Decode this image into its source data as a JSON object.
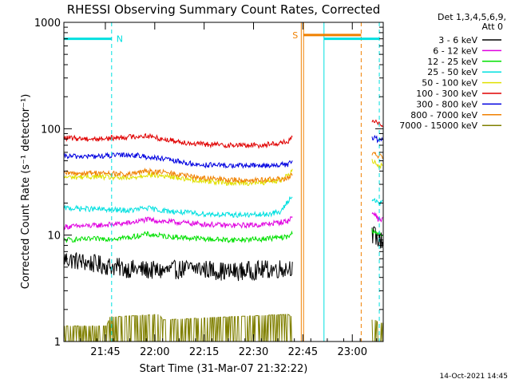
{
  "chart_data": {
    "type": "line",
    "title": "RHESSI Observing Summary Count Rates, Corrected",
    "xlabel": "Start Time (31-Mar-07 21:32:22)",
    "ylabel": "Corrected Count Rate (s⁻¹ detector⁻¹)",
    "y_scale": "log",
    "ylim": [
      1,
      1000
    ],
    "x_unit": "minutes since 21:32:22",
    "xlim": [
      0,
      97
    ],
    "x_tick_labels": [
      "21:45",
      "22:00",
      "22:15",
      "22:30",
      "22:45",
      "23:00"
    ],
    "x_tick_minutes": [
      12.6,
      27.6,
      42.6,
      57.6,
      72.6,
      87.6
    ],
    "y_tick_labels": [
      "1",
      "10",
      "100",
      "1000"
    ],
    "y_tick_values": [
      1,
      10,
      100,
      1000
    ],
    "legend_header": [
      "Det 1,3,4,5,6,9,",
      "Att 0"
    ],
    "legend_position": "right",
    "date_stamp": "14-Oct-2021 14:45",
    "series": [
      {
        "name": "3 - 6 keV",
        "color": "#000000",
        "x": [
          0,
          10,
          20,
          30,
          40,
          50,
          60,
          68,
          69.5,
          94.5,
          95.5
        ],
        "values": [
          6,
          5.3,
          4.8,
          4.6,
          4.9,
          4.5,
          4.7,
          4.9,
          5.2,
          10,
          9
        ]
      },
      {
        "name": "6 - 12 keV",
        "color": "#e000e0",
        "x": [
          0,
          10,
          20,
          25,
          30,
          40,
          50,
          60,
          68,
          69.5,
          94.5,
          95.5
        ],
        "values": [
          12,
          12.3,
          13,
          14,
          13.5,
          12.8,
          12.3,
          12.5,
          13.5,
          15,
          16,
          14
        ]
      },
      {
        "name": "12 - 25 keV",
        "color": "#00e000",
        "x": [
          0,
          10,
          20,
          25,
          30,
          40,
          50,
          60,
          68,
          69.5,
          94.5,
          95.5
        ],
        "values": [
          9,
          9.2,
          9.5,
          10.2,
          9.8,
          9.3,
          9,
          9.2,
          9.6,
          10.5,
          11,
          10
        ]
      },
      {
        "name": "25 - 50 keV",
        "color": "#00e0e0",
        "x": [
          0,
          10,
          20,
          25,
          30,
          40,
          50,
          60,
          66,
          69.5,
          94.5,
          95.5
        ],
        "values": [
          18,
          17.5,
          17,
          18,
          17,
          16,
          15.5,
          15.5,
          16.5,
          24,
          21,
          20
        ]
      },
      {
        "name": "50 - 100 keV",
        "color": "#e0e000",
        "x": [
          0,
          10,
          20,
          25,
          30,
          40,
          50,
          60,
          66,
          69.5,
          94.5,
          95.5
        ],
        "values": [
          35,
          35.5,
          34,
          37,
          36,
          33,
          31,
          31,
          33,
          40,
          50,
          45
        ]
      },
      {
        "name": "100 - 300 keV",
        "color": "#e00000",
        "x": [
          0,
          10,
          20,
          25,
          30,
          40,
          50,
          60,
          68,
          69.5,
          94.5,
          95.5
        ],
        "values": [
          82,
          80,
          84,
          86,
          80,
          72,
          70,
          70,
          75,
          82,
          118,
          110
        ]
      },
      {
        "name": "300 - 800 keV",
        "color": "#0000e0",
        "x": [
          0,
          10,
          20,
          30,
          40,
          50,
          60,
          68,
          69.5,
          94.5,
          95.5
        ],
        "values": [
          55,
          55,
          57,
          52,
          46,
          45,
          45,
          46,
          50,
          82,
          78
        ]
      },
      {
        "name": "800 - 7000 keV",
        "color": "#f08000",
        "x": [
          0,
          10,
          20,
          25,
          30,
          40,
          50,
          60,
          68,
          69.5,
          94.5,
          95.5
        ],
        "values": [
          38,
          38.5,
          37,
          40,
          39,
          35,
          33,
          33,
          34,
          37,
          58,
          55
        ]
      },
      {
        "name": "7000 - 15000 keV",
        "color": "#808000",
        "x": [
          0,
          13,
          14,
          29,
          30,
          68,
          69.5,
          94.5,
          95.5
        ],
        "values": [
          1.4,
          1.4,
          1.7,
          1.8,
          1.6,
          1.8,
          1.7,
          1.6,
          1.5
        ]
      }
    ],
    "flag_bars": [
      {
        "label": "N",
        "color": "#00e0e0",
        "start": 0,
        "end": 14.5,
        "value": 700
      },
      {
        "label": "S",
        "color": "#f08000",
        "start": 72.8,
        "end": 90.3,
        "value": 760
      },
      {
        "label": "",
        "color": "#00e0e0",
        "start": 79,
        "end": 95.8,
        "value": 700
      }
    ],
    "vertical_markers": [
      {
        "color": "#00e0e0",
        "minute": 0,
        "style": "solid"
      },
      {
        "color": "#00e0e0",
        "minute": 14.5,
        "style": "dashed"
      },
      {
        "color": "#f08000",
        "minute": 72.1,
        "style": "solid"
      },
      {
        "color": "#f08000",
        "minute": 72.8,
        "style": "solid"
      },
      {
        "color": "#00e0e0",
        "minute": 79,
        "style": "solid"
      },
      {
        "color": "#f08000",
        "minute": 90.3,
        "style": "dashed"
      },
      {
        "color": "#00e0e0",
        "minute": 95.8,
        "style": "dashed"
      }
    ],
    "data_gap_minutes": [
      69.6,
      93.6
    ]
  }
}
